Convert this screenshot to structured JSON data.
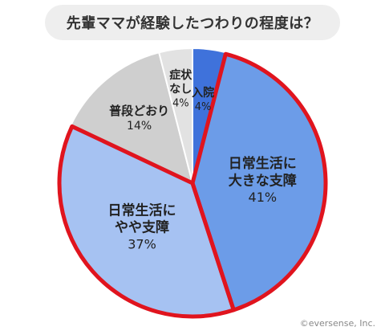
{
  "title": "先輩ママが経験したつわりの程度は？",
  "credit": "©eversense, Inc.",
  "chart_data": {
    "type": "pie",
    "title": "先輩ママが経験したつわりの程度は？",
    "slices": [
      {
        "label": [
          "入院"
        ],
        "value": 4,
        "value_label": "4%",
        "color": "#3f72db",
        "highlight": false
      },
      {
        "label": [
          "日常生活に",
          "大きな支障"
        ],
        "value": 41,
        "value_label": "41%",
        "color": "#6c9ce8",
        "highlight": true
      },
      {
        "label": [
          "日常生活に",
          "やや支障"
        ],
        "value": 37,
        "value_label": "37%",
        "color": "#a6c2f2",
        "highlight": true
      },
      {
        "label": [
          "普段どおり"
        ],
        "value": 14,
        "value_label": "14%",
        "color": "#cfcfcf",
        "highlight": false
      },
      {
        "label": [
          "症状",
          "なし"
        ],
        "value": 4,
        "value_label": "4%",
        "color": "#e2e2e2",
        "highlight": false
      }
    ],
    "start": "top",
    "direction": "clockwise",
    "highlight_color": "#e0141e"
  }
}
